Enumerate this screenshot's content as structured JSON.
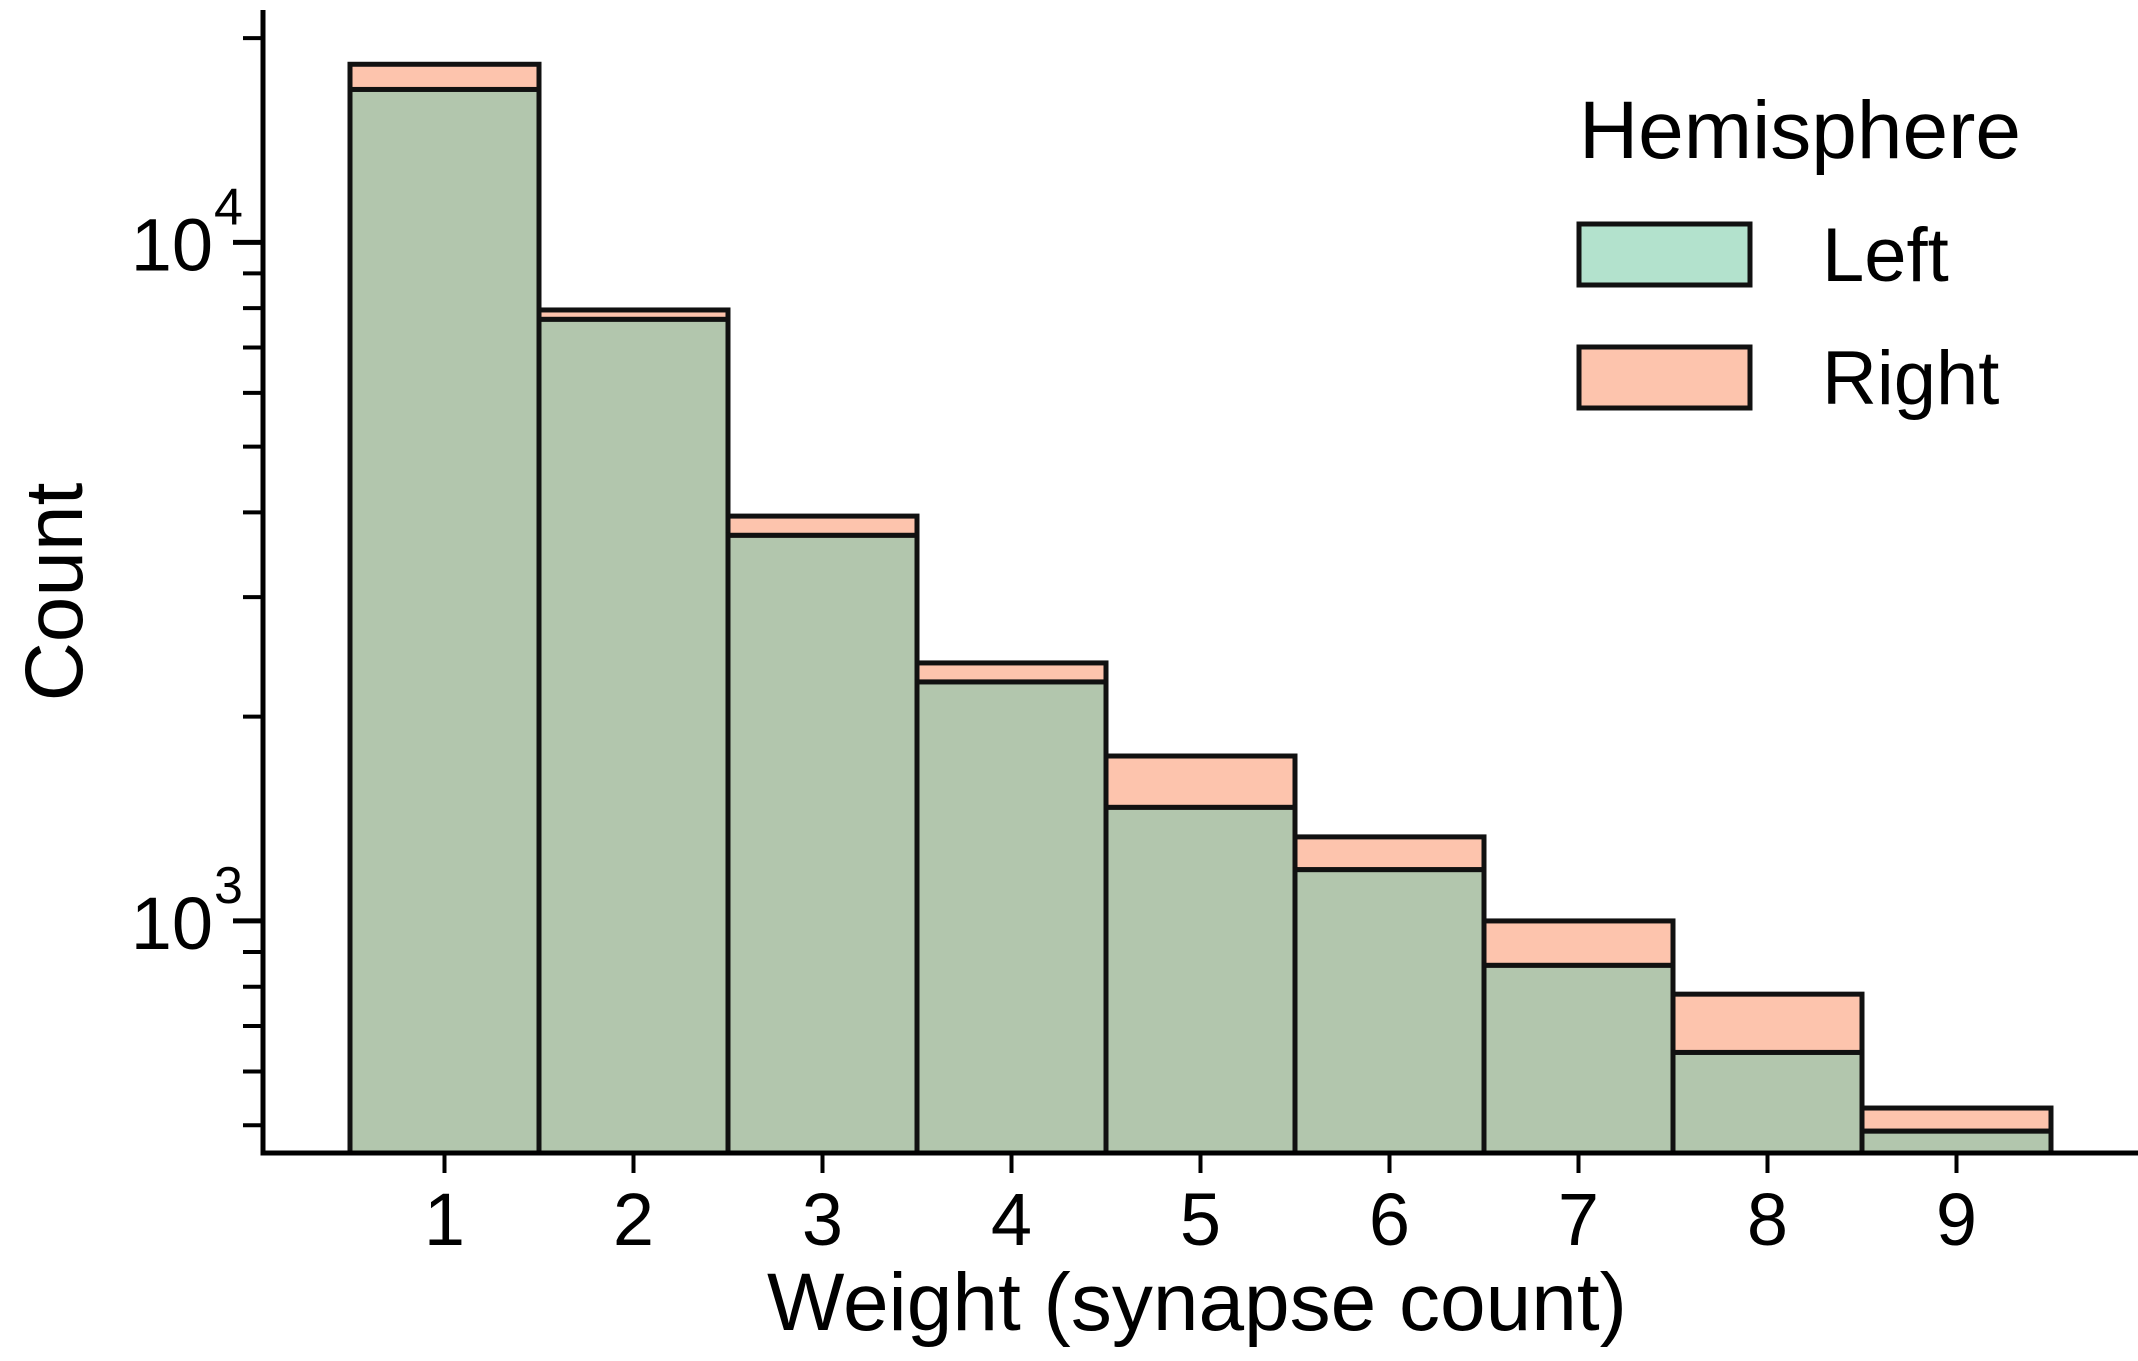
{
  "chart_data": {
    "type": "bar",
    "stacked": false,
    "overlay": true,
    "categories": [
      "1",
      "2",
      "3",
      "4",
      "5",
      "6",
      "7",
      "8",
      "9"
    ],
    "series": [
      {
        "name": "Left",
        "fill_color": "#b3e2cd",
        "values": [
          16800,
          7700,
          3700,
          2250,
          1470,
          1190,
          860,
          640,
          490
        ]
      },
      {
        "name": "Right",
        "fill_color": "#fdc4ad",
        "values": [
          18300,
          7950,
          3950,
          2400,
          1750,
          1330,
          1000,
          780,
          530
        ]
      }
    ],
    "xlabel": "Weight (synapse count)",
    "ylabel": "Count",
    "yscale": "log",
    "ylim": [
      455,
      22000
    ],
    "y_major_ticks": [
      {
        "value": 1000,
        "base": "10",
        "exponent": "3"
      },
      {
        "value": 10000,
        "base": "10",
        "exponent": "4"
      }
    ],
    "y_minor_ticks": [
      500,
      600,
      700,
      800,
      900,
      2000,
      3000,
      4000,
      5000,
      6000,
      7000,
      8000,
      9000,
      20000
    ],
    "legend": {
      "title": "Hemisphere",
      "position": "top-right",
      "entries": [
        "Left",
        "Right"
      ]
    },
    "overlap_color": "#b2c6ad",
    "grid": false
  }
}
